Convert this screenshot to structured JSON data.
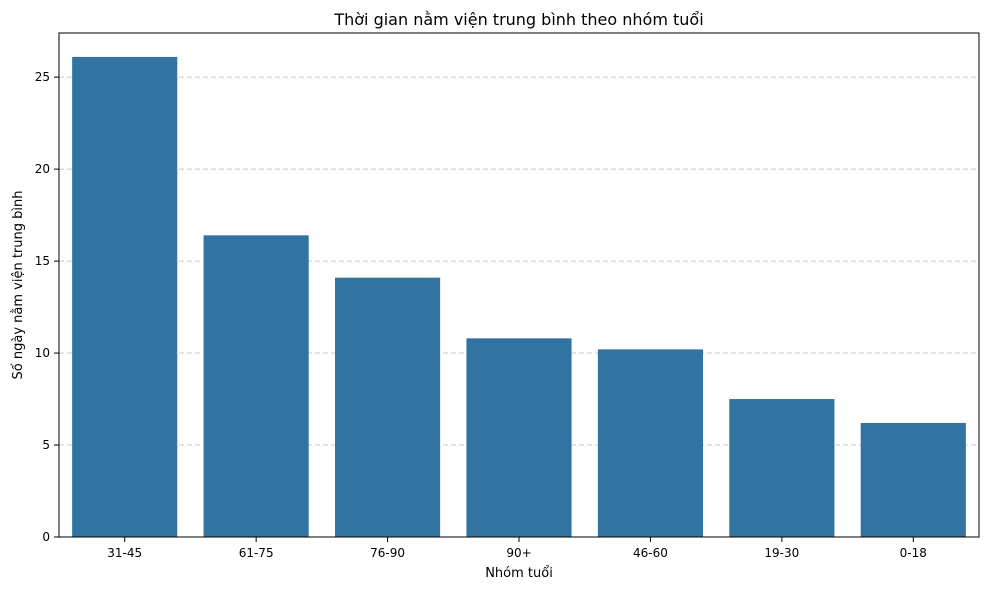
{
  "chart_data": {
    "type": "bar",
    "title": "Thời gian nằm viện trung bình theo nhóm tuổi",
    "xlabel": "Nhóm tuổi",
    "ylabel": "Số ngày nằm viện trung bình",
    "categories": [
      "31-45",
      "61-75",
      "76-90",
      "90+",
      "46-60",
      "19-30",
      "0-18"
    ],
    "values": [
      26.1,
      16.4,
      14.1,
      10.8,
      10.2,
      7.5,
      6.2
    ],
    "ylim": [
      0,
      27.4
    ],
    "yticks": [
      0,
      5,
      10,
      15,
      20,
      25
    ],
    "grid": "y-dashed",
    "legend": "none",
    "bar_color": "#3274a1"
  }
}
